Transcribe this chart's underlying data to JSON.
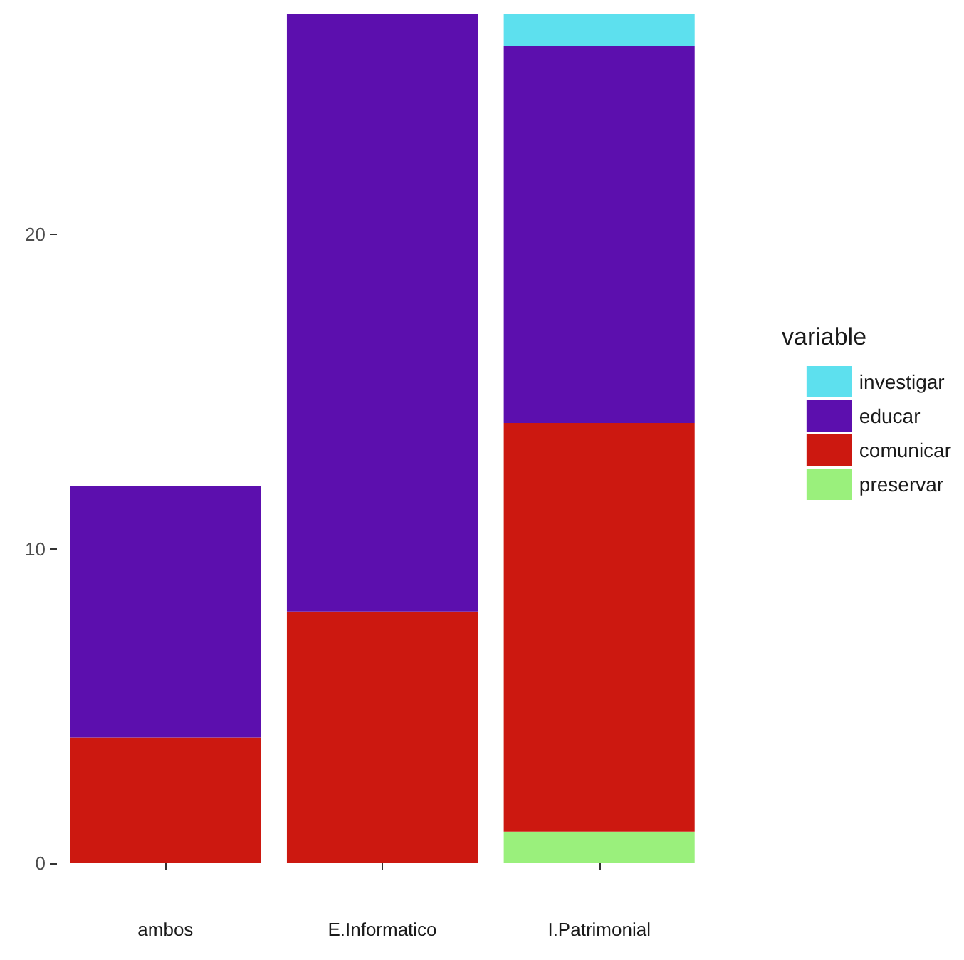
{
  "chart_data": {
    "type": "bar",
    "stacked": true,
    "categories": [
      "ambos",
      "E.Informatico",
      "I.Patrimonial"
    ],
    "series": [
      {
        "name": "preservar",
        "color": "#9af07c",
        "values": [
          0,
          0,
          1
        ]
      },
      {
        "name": "comunicar",
        "color": "#cc1810",
        "values": [
          4,
          8,
          13
        ]
      },
      {
        "name": "educar",
        "color": "#5c0fae",
        "values": [
          8,
          19,
          12
        ]
      },
      {
        "name": "investigar",
        "color": "#5de0ee",
        "values": [
          0,
          0,
          1
        ]
      }
    ],
    "legend_title": "variable",
    "legend": "right",
    "grid": false,
    "ylim": [
      0,
      27
    ],
    "yticks": [
      0,
      10,
      20
    ]
  }
}
